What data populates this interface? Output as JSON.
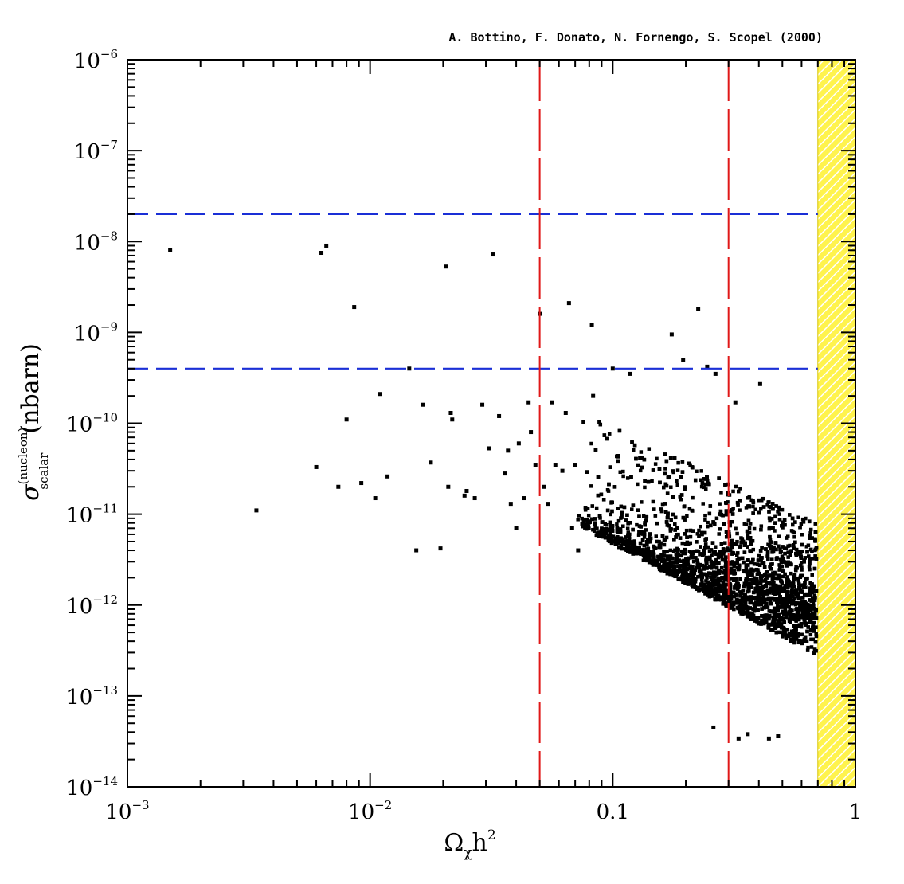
{
  "chart_data": {
    "type": "scatter",
    "title": "A. Bottino, F. Donato, N. Fornengo, S. Scopel (2000)",
    "xlabel": {
      "base": "Ω",
      "sub": "χ",
      "rest": "h",
      "sup": "2"
    },
    "ylabel": {
      "symbol": "σ",
      "sup": "(nucleon)",
      "sub": "scalar",
      "unit": "(nbarn)"
    },
    "x_scale": "log",
    "y_scale": "log",
    "xlim": [
      0.001,
      1
    ],
    "ylim": [
      1e-14,
      1e-06
    ],
    "x_ticks": [
      {
        "value": 0.001,
        "base": "10",
        "exp": "−3"
      },
      {
        "value": 0.01,
        "base": "10",
        "exp": "−2"
      },
      {
        "value": 0.1,
        "base": "0.1",
        "exp": ""
      },
      {
        "value": 1,
        "base": "1",
        "exp": ""
      }
    ],
    "y_ticks": [
      {
        "value": 1e-06,
        "base": "10",
        "exp": "−6"
      },
      {
        "value": 1e-07,
        "base": "10",
        "exp": "−7"
      },
      {
        "value": 1e-08,
        "base": "10",
        "exp": "−8"
      },
      {
        "value": 1e-09,
        "base": "10",
        "exp": "−9"
      },
      {
        "value": 1e-10,
        "base": "10",
        "exp": "−10"
      },
      {
        "value": 1e-11,
        "base": "10",
        "exp": "−11"
      },
      {
        "value": 1e-12,
        "base": "10",
        "exp": "−12"
      },
      {
        "value": 1e-13,
        "base": "10",
        "exp": "−13"
      },
      {
        "value": 1e-14,
        "base": "10",
        "exp": "−14"
      }
    ],
    "hlines": [
      {
        "y": 2e-08,
        "color": "#1a2fd6",
        "style": "dashed"
      },
      {
        "y": 4e-10,
        "color": "#1a2fd6",
        "style": "dashed"
      }
    ],
    "vlines": [
      {
        "x": 0.05,
        "color": "#e01818",
        "style": "dashed"
      },
      {
        "x": 0.3,
        "color": "#e01818",
        "style": "dashed"
      }
    ],
    "excluded_band": {
      "x_from": 0.7,
      "x_to": 1,
      "color": "#ffee00",
      "pattern": "hatched"
    },
    "series": [
      {
        "marker_color": "#000000",
        "points": [
          [
            0.0015,
            8e-09
          ],
          [
            0.0034,
            1.1e-11
          ],
          [
            0.006,
            3.3e-11
          ],
          [
            0.0063,
            7.5e-09
          ],
          [
            0.0066,
            9e-09
          ],
          [
            0.0074,
            2e-11
          ],
          [
            0.008,
            1.1e-10
          ],
          [
            0.0086,
            1.9e-09
          ],
          [
            0.0092,
            2.2e-11
          ],
          [
            0.0105,
            1.5e-11
          ],
          [
            0.011,
            2.1e-10
          ],
          [
            0.0118,
            2.6e-11
          ],
          [
            0.0145,
            4e-10
          ],
          [
            0.0155,
            4e-12
          ],
          [
            0.0165,
            1.6e-10
          ],
          [
            0.0178,
            3.7e-11
          ],
          [
            0.0195,
            4.2e-12
          ],
          [
            0.0205,
            5.3e-09
          ],
          [
            0.021,
            2e-11
          ],
          [
            0.0215,
            1.3e-10
          ],
          [
            0.0218,
            1.1e-10
          ],
          [
            0.0245,
            1.6e-11
          ],
          [
            0.025,
            1.8e-11
          ],
          [
            0.027,
            1.5e-11
          ],
          [
            0.029,
            1.6e-10
          ],
          [
            0.031,
            5.3e-11
          ],
          [
            0.032,
            7.2e-09
          ],
          [
            0.034,
            1.2e-10
          ],
          [
            0.036,
            2.8e-11
          ],
          [
            0.037,
            5e-11
          ],
          [
            0.038,
            1.3e-11
          ],
          [
            0.04,
            7e-12
          ],
          [
            0.041,
            6e-11
          ],
          [
            0.043,
            1.5e-11
          ],
          [
            0.045,
            1.7e-10
          ],
          [
            0.046,
            8e-11
          ],
          [
            0.048,
            3.5e-11
          ],
          [
            0.05,
            1.6e-09
          ],
          [
            0.052,
            2e-11
          ],
          [
            0.054,
            1.3e-11
          ],
          [
            0.056,
            1.7e-10
          ],
          [
            0.058,
            3.5e-11
          ],
          [
            0.062,
            3e-11
          ],
          [
            0.064,
            1.3e-10
          ],
          [
            0.066,
            2.1e-09
          ],
          [
            0.068,
            7e-12
          ],
          [
            0.07,
            3.5e-11
          ],
          [
            0.072,
            4e-12
          ],
          [
            0.082,
            1.2e-09
          ],
          [
            0.083,
            2e-10
          ],
          [
            0.1,
            4e-10
          ],
          [
            0.118,
            3.5e-10
          ],
          [
            0.175,
            9.5e-10
          ],
          [
            0.195,
            5e-10
          ],
          [
            0.225,
            1.8e-09
          ],
          [
            0.245,
            4.2e-10
          ],
          [
            0.265,
            3.5e-10
          ],
          [
            0.32,
            1.7e-10
          ],
          [
            0.405,
            2.7e-10
          ],
          [
            0.26,
            4.5e-14
          ],
          [
            0.33,
            3.4e-14
          ],
          [
            0.36,
            3.8e-14
          ],
          [
            0.44,
            3.4e-14
          ],
          [
            0.48,
            3.6e-14
          ]
        ],
        "dense_region": {
          "count": 3800,
          "note": "dense cloud of neutralino models",
          "x_range": [
            0.07,
            0.7
          ]
        }
      }
    ]
  }
}
